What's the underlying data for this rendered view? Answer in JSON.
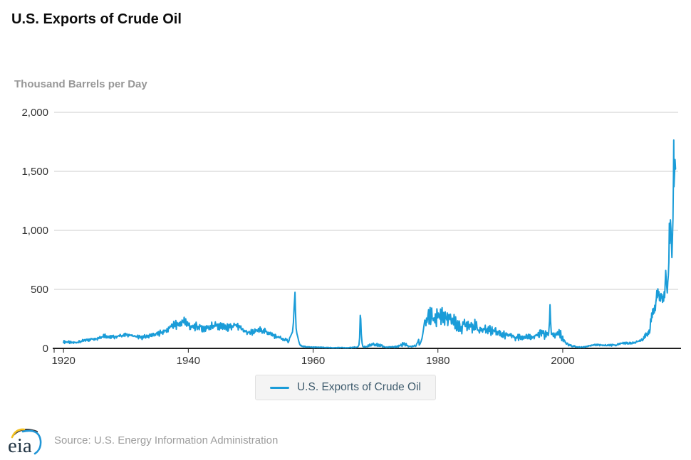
{
  "header": {
    "title": "U.S. Exports of Crude Oil"
  },
  "legend": {
    "label": "U.S. Exports of Crude Oil"
  },
  "footer": {
    "source": "Source: U.S. Energy Information Administration",
    "logo": "eia"
  },
  "colors": {
    "line": "#1a9cd8",
    "grid": "#cccccc",
    "axis": "#1f1f1f",
    "tick_label": "#333333",
    "subtitle_text": "#979797",
    "legend_text": "#3d5a6c",
    "legend_bg": "#f4f4f4",
    "source_text": "#9d9d9d",
    "logo_yellow": "#f2c021",
    "logo_blue": "#2196d6",
    "logo_dark": "#243746"
  },
  "chart_data": {
    "type": "line",
    "title": "U.S. Exports of Crude Oil",
    "xlabel": "",
    "ylabel": "Thousand Barrels per Day",
    "units": "thousand barrels per day",
    "resolution": "monthly",
    "x_domain": [
      1918.5,
      2018.5
    ],
    "ylim": [
      0,
      2000
    ],
    "grid": "horizontal",
    "legend_position": "bottom",
    "x_ticks": [
      1920,
      1940,
      1960,
      1980,
      2000
    ],
    "x_tick_labels": [
      "1920",
      "1940",
      "1960",
      "1980",
      "2000"
    ],
    "y_ticks": [
      0,
      500,
      1000,
      1500,
      2000
    ],
    "y_tick_labels": [
      "0",
      "500",
      "1,000",
      "1,500",
      "2,000"
    ],
    "series": [
      {
        "name": "U.S. Exports of Crude Oil",
        "color": "#1a9cd8",
        "annual_avg_and_volatility": [
          [
            1920,
            55,
            15
          ],
          [
            1921,
            48,
            10
          ],
          [
            1922,
            55,
            12
          ],
          [
            1923,
            68,
            15
          ],
          [
            1924,
            78,
            22
          ],
          [
            1925,
            88,
            18
          ],
          [
            1926,
            108,
            22
          ],
          [
            1927,
            95,
            18
          ],
          [
            1928,
            100,
            18
          ],
          [
            1929,
            112,
            20
          ],
          [
            1930,
            115,
            22
          ],
          [
            1931,
            100,
            20
          ],
          [
            1932,
            92,
            18
          ],
          [
            1933,
            103,
            20
          ],
          [
            1934,
            115,
            22
          ],
          [
            1935,
            132,
            26
          ],
          [
            1936,
            152,
            30
          ],
          [
            1937,
            195,
            40
          ],
          [
            1938,
            205,
            50
          ],
          [
            1939,
            230,
            55
          ],
          [
            1940,
            175,
            45
          ],
          [
            1941,
            185,
            42
          ],
          [
            1942,
            165,
            45
          ],
          [
            1943,
            185,
            40
          ],
          [
            1944,
            195,
            42
          ],
          [
            1945,
            185,
            40
          ],
          [
            1946,
            172,
            36
          ],
          [
            1947,
            192,
            40
          ],
          [
            1948,
            165,
            35
          ],
          [
            1949,
            132,
            30
          ],
          [
            1950,
            138,
            30
          ],
          [
            1951,
            158,
            32
          ],
          [
            1952,
            142,
            30
          ],
          [
            1953,
            112,
            25
          ],
          [
            1954,
            92,
            22
          ],
          [
            1955,
            72,
            18
          ],
          [
            1958,
            15,
            6
          ],
          [
            1959,
            10,
            5
          ],
          [
            1960,
            9,
            5
          ],
          [
            1961,
            8,
            4
          ],
          [
            1962,
            6,
            3
          ],
          [
            1963,
            5,
            3
          ],
          [
            1964,
            7,
            5
          ],
          [
            1965,
            5,
            3
          ],
          [
            1966,
            8,
            5
          ],
          [
            1968,
            15,
            7
          ],
          [
            1969,
            30,
            18
          ],
          [
            1970,
            30,
            20
          ],
          [
            1971,
            12,
            6
          ],
          [
            1972,
            10,
            5
          ],
          [
            1973,
            15,
            8
          ],
          [
            1974,
            35,
            25
          ],
          [
            1975,
            15,
            8
          ],
          [
            1976,
            22,
            10
          ],
          [
            1978,
            265,
            95
          ],
          [
            1979,
            250,
            90
          ],
          [
            1980,
            280,
            95
          ],
          [
            1981,
            250,
            85
          ],
          [
            1982,
            235,
            85
          ],
          [
            1983,
            175,
            60
          ],
          [
            1984,
            205,
            70
          ],
          [
            1985,
            200,
            70
          ],
          [
            1986,
            160,
            55
          ],
          [
            1987,
            155,
            50
          ],
          [
            1988,
            160,
            55
          ],
          [
            1989,
            145,
            45
          ],
          [
            1990,
            112,
            38
          ],
          [
            1991,
            118,
            38
          ],
          [
            1992,
            92,
            32
          ],
          [
            1993,
            100,
            32
          ],
          [
            1994,
            100,
            30
          ],
          [
            1995,
            98,
            32
          ],
          [
            1996,
            125,
            55
          ],
          [
            1997,
            115,
            45
          ],
          [
            1998,
            110,
            35
          ],
          [
            1999,
            125,
            50
          ],
          [
            2000,
            45,
            20
          ],
          [
            2001,
            20,
            9
          ],
          [
            2002,
            10,
            5
          ],
          [
            2003,
            12,
            6
          ],
          [
            2004,
            26,
            9
          ],
          [
            2005,
            31,
            10
          ],
          [
            2006,
            25,
            8
          ],
          [
            2007,
            27,
            9
          ],
          [
            2008,
            28,
            10
          ],
          [
            2009,
            43,
            12
          ],
          [
            2010,
            42,
            11
          ],
          [
            2011,
            46,
            12
          ],
          [
            2012,
            66,
            16
          ]
        ],
        "event_segments": {
          "suez_spike_1957": [
            [
              1956.2,
              85
            ],
            [
              1956.45,
              110
            ],
            [
              1956.7,
              140
            ],
            [
              1956.85,
              220
            ],
            [
              1956.95,
              340
            ],
            [
              1957.05,
              430
            ],
            [
              1957.1,
              475
            ],
            [
              1957.18,
              310
            ],
            [
              1957.28,
              170
            ],
            [
              1957.4,
              125
            ],
            [
              1957.55,
              95
            ],
            [
              1957.7,
              60
            ],
            [
              1957.85,
              35
            ],
            [
              1958.0,
              22
            ]
          ],
          "spike_1967": [
            [
              1967.0,
              10
            ],
            [
              1967.2,
              14
            ],
            [
              1967.35,
              30
            ],
            [
              1967.45,
              90
            ],
            [
              1967.55,
              280
            ],
            [
              1967.63,
              250
            ],
            [
              1967.72,
              120
            ],
            [
              1967.85,
              45
            ],
            [
              1967.97,
              15
            ]
          ],
          "ramp_up_1977": [
            [
              1977.0,
              28
            ],
            [
              1977.15,
              40
            ],
            [
              1977.3,
              60
            ],
            [
              1977.45,
              85
            ],
            [
              1977.6,
              130
            ],
            [
              1977.75,
              185
            ],
            [
              1977.9,
              240
            ]
          ],
          "spike_1998": [
            [
              1997.75,
              130
            ],
            [
              1997.88,
              230
            ],
            [
              1997.96,
              370
            ],
            [
              1998.06,
              230
            ],
            [
              1998.18,
              120
            ]
          ]
        },
        "monthly_tail": [
          [
            2013.0,
            100
          ],
          [
            2013.08,
            85
          ],
          [
            2013.17,
            120
          ],
          [
            2013.25,
            95
          ],
          [
            2013.33,
            130
          ],
          [
            2013.42,
            110
          ],
          [
            2013.5,
            125
          ],
          [
            2013.58,
            105
          ],
          [
            2013.67,
            140
          ],
          [
            2013.75,
            120
          ],
          [
            2013.83,
            155
          ],
          [
            2013.92,
            130
          ],
          [
            2014.0,
            165
          ],
          [
            2014.08,
            250
          ],
          [
            2014.17,
            225
          ],
          [
            2014.25,
            300
          ],
          [
            2014.33,
            260
          ],
          [
            2014.42,
            335
          ],
          [
            2014.5,
            290
          ],
          [
            2014.58,
            340
          ],
          [
            2014.67,
            300
          ],
          [
            2014.75,
            365
          ],
          [
            2014.83,
            320
          ],
          [
            2014.92,
            390
          ],
          [
            2015.0,
            420
          ],
          [
            2015.08,
            490
          ],
          [
            2015.17,
            430
          ],
          [
            2015.25,
            505
          ],
          [
            2015.33,
            445
          ],
          [
            2015.42,
            480
          ],
          [
            2015.5,
            405
          ],
          [
            2015.58,
            455
          ],
          [
            2015.67,
            400
          ],
          [
            2015.75,
            465
          ],
          [
            2015.83,
            425
          ],
          [
            2015.92,
            455
          ],
          [
            2016.0,
            390
          ],
          [
            2016.08,
            440
          ],
          [
            2016.17,
            400
          ],
          [
            2016.25,
            480
          ],
          [
            2016.33,
            430
          ],
          [
            2016.42,
            560
          ],
          [
            2016.5,
            660
          ],
          [
            2016.58,
            590
          ],
          [
            2016.67,
            520
          ],
          [
            2016.75,
            470
          ],
          [
            2016.83,
            560
          ],
          [
            2016.92,
            620
          ],
          [
            2017.0,
            730
          ],
          [
            2017.08,
            1060
          ],
          [
            2017.17,
            890
          ],
          [
            2017.25,
            1090
          ],
          [
            2017.33,
            1020
          ],
          [
            2017.42,
            900
          ],
          [
            2017.5,
            770
          ],
          [
            2017.58,
            920
          ],
          [
            2017.67,
            1100
          ],
          [
            2017.75,
            1470
          ],
          [
            2017.79,
            1765
          ],
          [
            2017.83,
            1370
          ],
          [
            2017.92,
            1480
          ],
          [
            2018.0,
            1600
          ],
          [
            2018.08,
            1520
          ]
        ]
      }
    ]
  }
}
